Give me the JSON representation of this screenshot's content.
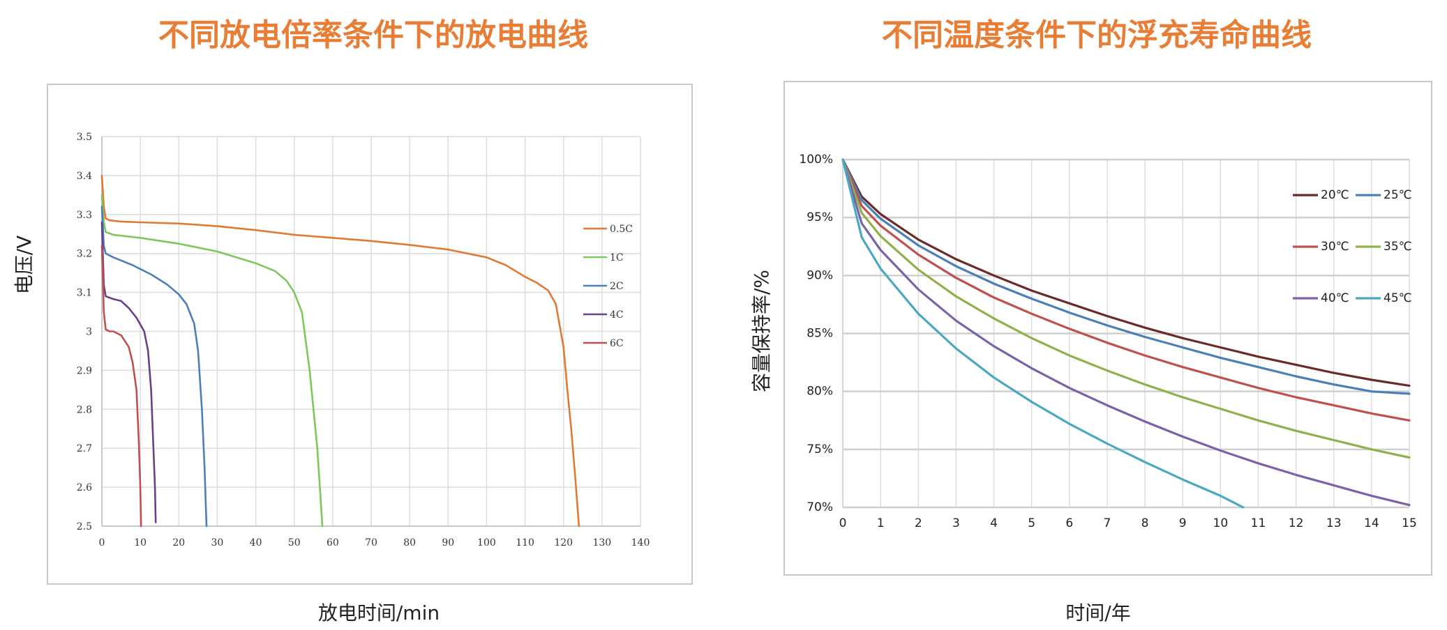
{
  "chart_data": [
    {
      "type": "line",
      "title": "不同放电倍率条件下的放电曲线",
      "xlabel": "放电时间/min",
      "ylabel": "电压/V",
      "xlim": [
        0,
        140
      ],
      "ylim": [
        2.5,
        3.5
      ],
      "x_ticks": [
        "0",
        "10",
        "20",
        "30",
        "40",
        "50",
        "60",
        "70",
        "80",
        "90",
        "100",
        "110",
        "120",
        "130",
        "140"
      ],
      "y_ticks": [
        "2.5",
        "2.6",
        "2.7",
        "2.8",
        "2.9",
        "3",
        "3.1",
        "3.2",
        "3.3",
        "3.4",
        "3.5"
      ],
      "grid": true,
      "legend": "right",
      "series": [
        {
          "name": "0.5C",
          "color": "#e07a32",
          "points": [
            [
              0,
              3.4
            ],
            [
              0.5,
              3.32
            ],
            [
              1,
              3.29
            ],
            [
              2,
              3.285
            ],
            [
              5,
              3.282
            ],
            [
              10,
              3.28
            ],
            [
              20,
              3.277
            ],
            [
              30,
              3.27
            ],
            [
              40,
              3.26
            ],
            [
              50,
              3.248
            ],
            [
              60,
              3.24
            ],
            [
              70,
              3.232
            ],
            [
              80,
              3.222
            ],
            [
              90,
              3.21
            ],
            [
              100,
              3.19
            ],
            [
              105,
              3.17
            ],
            [
              110,
              3.14
            ],
            [
              113,
              3.125
            ],
            [
              116,
              3.105
            ],
            [
              118,
              3.07
            ],
            [
              120,
              2.96
            ],
            [
              121,
              2.85
            ],
            [
              122,
              2.75
            ],
            [
              123,
              2.63
            ],
            [
              124,
              2.5
            ]
          ]
        },
        {
          "name": "1C",
          "color": "#7cc85a",
          "points": [
            [
              0,
              3.35
            ],
            [
              0.5,
              3.28
            ],
            [
              1,
              3.255
            ],
            [
              3,
              3.248
            ],
            [
              10,
              3.24
            ],
            [
              20,
              3.225
            ],
            [
              30,
              3.205
            ],
            [
              40,
              3.175
            ],
            [
              45,
              3.155
            ],
            [
              48,
              3.13
            ],
            [
              50,
              3.1
            ],
            [
              52,
              3.05
            ],
            [
              54,
              2.9
            ],
            [
              55,
              2.8
            ],
            [
              56,
              2.7
            ],
            [
              57,
              2.55
            ],
            [
              57.3,
              2.5
            ]
          ]
        },
        {
          "name": "2C",
          "color": "#4a7fb8",
          "points": [
            [
              0,
              3.32
            ],
            [
              0.5,
              3.22
            ],
            [
              1,
              3.2
            ],
            [
              3,
              3.19
            ],
            [
              8,
              3.17
            ],
            [
              13,
              3.145
            ],
            [
              17,
              3.12
            ],
            [
              20,
              3.095
            ],
            [
              22,
              3.07
            ],
            [
              24,
              3.02
            ],
            [
              25,
              2.95
            ],
            [
              26,
              2.8
            ],
            [
              26.7,
              2.65
            ],
            [
              27.2,
              2.5
            ]
          ]
        },
        {
          "name": "4C",
          "color": "#6b3e8c",
          "points": [
            [
              0,
              3.28
            ],
            [
              0.5,
              3.12
            ],
            [
              1,
              3.09
            ],
            [
              3,
              3.083
            ],
            [
              5,
              3.078
            ],
            [
              7,
              3.06
            ],
            [
              9,
              3.035
            ],
            [
              11,
              3.0
            ],
            [
              12,
              2.95
            ],
            [
              12.8,
              2.85
            ],
            [
              13.4,
              2.7
            ],
            [
              13.8,
              2.6
            ],
            [
              14,
              2.51
            ]
          ]
        },
        {
          "name": "6C",
          "color": "#c0504d",
          "points": [
            [
              0,
              3.22
            ],
            [
              0.5,
              3.05
            ],
            [
              1,
              3.005
            ],
            [
              2,
              3.0
            ],
            [
              3,
              3.0
            ],
            [
              5,
              2.99
            ],
            [
              7,
              2.96
            ],
            [
              8,
              2.92
            ],
            [
              9,
              2.85
            ],
            [
              9.6,
              2.72
            ],
            [
              10,
              2.6
            ],
            [
              10.2,
              2.5
            ]
          ]
        }
      ]
    },
    {
      "type": "line",
      "title": "不同温度条件下的浮充寿命曲线",
      "xlabel": "时间/年",
      "ylabel": "容量保持率/%",
      "xlim": [
        0,
        15
      ],
      "ylim": [
        70,
        100
      ],
      "x_ticks": [
        "0",
        "1",
        "2",
        "3",
        "4",
        "5",
        "6",
        "7",
        "8",
        "9",
        "10",
        "11",
        "12",
        "13",
        "14",
        "15"
      ],
      "y_ticks": [
        "70%",
        "75%",
        "80%",
        "85%",
        "90%",
        "95%",
        "100%"
      ],
      "grid": true,
      "legend": "top-right",
      "series": [
        {
          "name": "20℃",
          "color": "#6b2a2a",
          "points": [
            [
              0,
              100
            ],
            [
              0.5,
              96.8
            ],
            [
              1,
              95.3
            ],
            [
              2,
              93.1
            ],
            [
              3,
              91.4
            ],
            [
              4,
              90.0
            ],
            [
              5,
              88.7
            ],
            [
              6,
              87.6
            ],
            [
              7,
              86.5
            ],
            [
              8,
              85.5
            ],
            [
              9,
              84.6
            ],
            [
              10,
              83.8
            ],
            [
              11,
              83.0
            ],
            [
              12,
              82.3
            ],
            [
              13,
              81.6
            ],
            [
              14,
              81.0
            ],
            [
              15,
              80.5
            ]
          ]
        },
        {
          "name": "25℃",
          "color": "#4a7fb8",
          "points": [
            [
              0,
              100
            ],
            [
              0.5,
              96.5
            ],
            [
              1,
              94.9
            ],
            [
              2,
              92.6
            ],
            [
              3,
              90.8
            ],
            [
              4,
              89.3
            ],
            [
              5,
              88.0
            ],
            [
              6,
              86.8
            ],
            [
              7,
              85.7
            ],
            [
              8,
              84.7
            ],
            [
              9,
              83.8
            ],
            [
              10,
              82.9
            ],
            [
              11,
              82.1
            ],
            [
              12,
              81.3
            ],
            [
              13,
              80.6
            ],
            [
              14,
              80.0
            ],
            [
              15,
              79.8
            ]
          ]
        },
        {
          "name": "30℃",
          "color": "#c0504d",
          "points": [
            [
              0,
              100
            ],
            [
              0.5,
              96.0
            ],
            [
              1,
              94.3
            ],
            [
              2,
              91.8
            ],
            [
              3,
              89.8
            ],
            [
              4,
              88.1
            ],
            [
              5,
              86.7
            ],
            [
              6,
              85.4
            ],
            [
              7,
              84.2
            ],
            [
              8,
              83.1
            ],
            [
              9,
              82.1
            ],
            [
              10,
              81.2
            ],
            [
              11,
              80.3
            ],
            [
              12,
              79.5
            ],
            [
              13,
              78.8
            ],
            [
              14,
              78.1
            ],
            [
              15,
              77.5
            ]
          ]
        },
        {
          "name": "35℃",
          "color": "#8fb04a",
          "points": [
            [
              0,
              100
            ],
            [
              0.5,
              95.4
            ],
            [
              1,
              93.4
            ],
            [
              2,
              90.5
            ],
            [
              3,
              88.2
            ],
            [
              4,
              86.3
            ],
            [
              5,
              84.6
            ],
            [
              6,
              83.1
            ],
            [
              7,
              81.8
            ],
            [
              8,
              80.6
            ],
            [
              9,
              79.5
            ],
            [
              10,
              78.5
            ],
            [
              11,
              77.5
            ],
            [
              12,
              76.6
            ],
            [
              13,
              75.8
            ],
            [
              14,
              75.0
            ],
            [
              15,
              74.3
            ]
          ]
        },
        {
          "name": "40℃",
          "color": "#7b62a8",
          "points": [
            [
              0,
              100
            ],
            [
              0.5,
              94.5
            ],
            [
              1,
              92.2
            ],
            [
              2,
              88.8
            ],
            [
              3,
              86.1
            ],
            [
              4,
              83.9
            ],
            [
              5,
              82.0
            ],
            [
              6,
              80.3
            ],
            [
              7,
              78.8
            ],
            [
              8,
              77.4
            ],
            [
              9,
              76.1
            ],
            [
              10,
              74.9
            ],
            [
              11,
              73.8
            ],
            [
              12,
              72.8
            ],
            [
              13,
              71.9
            ],
            [
              14,
              71.0
            ],
            [
              15,
              70.2
            ]
          ]
        },
        {
          "name": "45℃",
          "color": "#4aa8c0",
          "points": [
            [
              0,
              100
            ],
            [
              0.5,
              93.3
            ],
            [
              1,
              90.6
            ],
            [
              2,
              86.7
            ],
            [
              3,
              83.7
            ],
            [
              4,
              81.2
            ],
            [
              5,
              79.1
            ],
            [
              6,
              77.2
            ],
            [
              7,
              75.5
            ],
            [
              8,
              73.9
            ],
            [
              9,
              72.4
            ],
            [
              10,
              71.0
            ],
            [
              10.6,
              70.0
            ]
          ]
        }
      ]
    }
  ]
}
